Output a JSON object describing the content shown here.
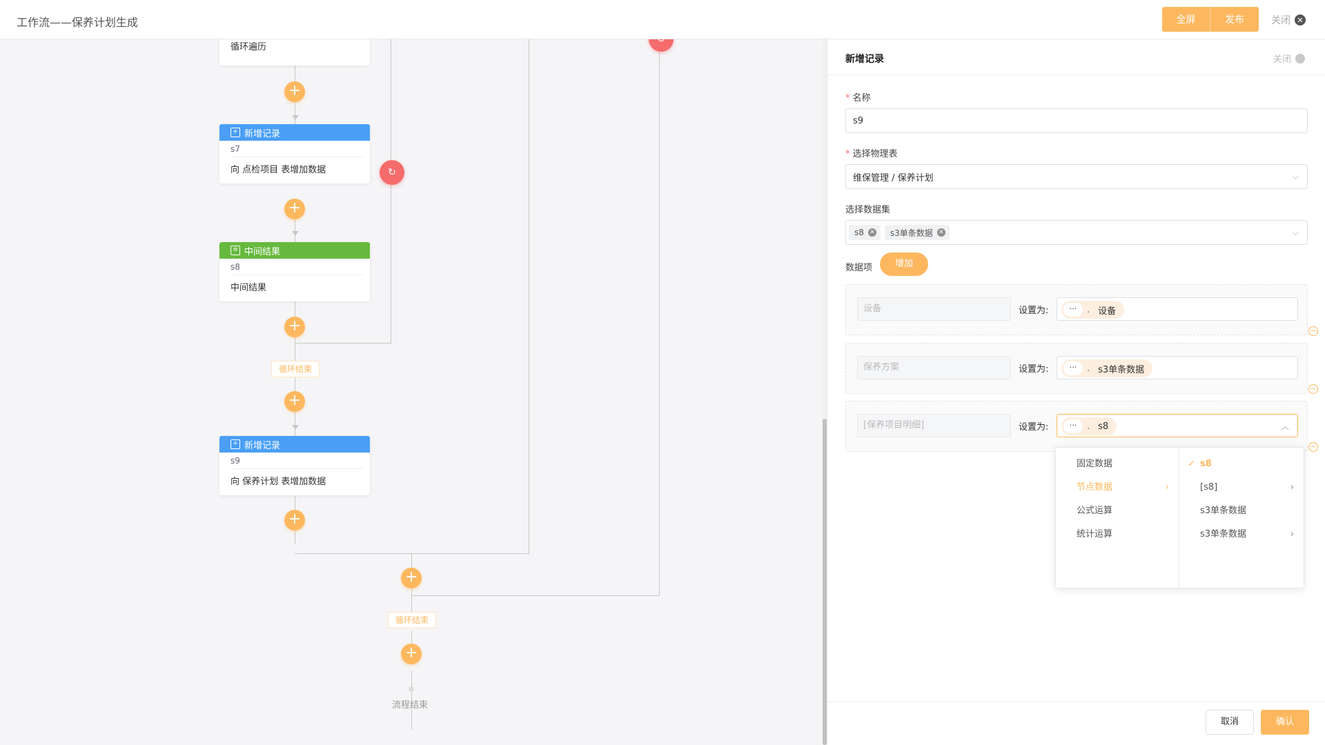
{
  "topbar": {
    "title": "工作流——保养计划生成",
    "fullscreen_label": "全屏",
    "publish_label": "发布",
    "close_label": "关闭"
  },
  "canvas": {
    "loop_node_desc": "循环遍历",
    "node_s7": {
      "type_label": "新增记录",
      "name": "s7",
      "desc": "向 点检项目 表增加数据"
    },
    "node_s8": {
      "type_label": "中间结果",
      "name": "s8",
      "desc": "中间结果"
    },
    "node_s9": {
      "type_label": "新增记录",
      "name": "s9",
      "desc": "向 保养计划 表增加数据"
    },
    "loop_end_label": "循环结束",
    "loop_end_label_2": "循环结束",
    "flow_end_label": "流程结束"
  },
  "panel": {
    "title": "新增记录",
    "close_label": "关闭",
    "name_label": "名称",
    "name_value": "s9",
    "table_label": "选择物理表",
    "table_value": "维保管理 / 保养计划",
    "dataset_label": "选择数据集",
    "dataset_chips": [
      "s8",
      "s3单条数据"
    ],
    "items_label": "数据项",
    "add_button": "增加",
    "set_as_label": "设置为:",
    "items": [
      {
        "field": "设备",
        "value": "设备"
      },
      {
        "field": "保养方案",
        "value": "s3单条数据"
      },
      {
        "field": "[保养项目明细]",
        "value": "s8"
      }
    ],
    "cancel_button": "取消",
    "confirm_button": "确认"
  },
  "dropdown": {
    "left": [
      "固定数据",
      "节点数据",
      "公式运算",
      "统计运算"
    ],
    "right": [
      "s8",
      "[s8]",
      "s3单条数据",
      "s3单条数据"
    ]
  },
  "colors": {
    "accent": "#fdb85f",
    "node_blue": "#4a9ff5",
    "node_green": "#67b93e",
    "danger": "#f56c6c"
  }
}
